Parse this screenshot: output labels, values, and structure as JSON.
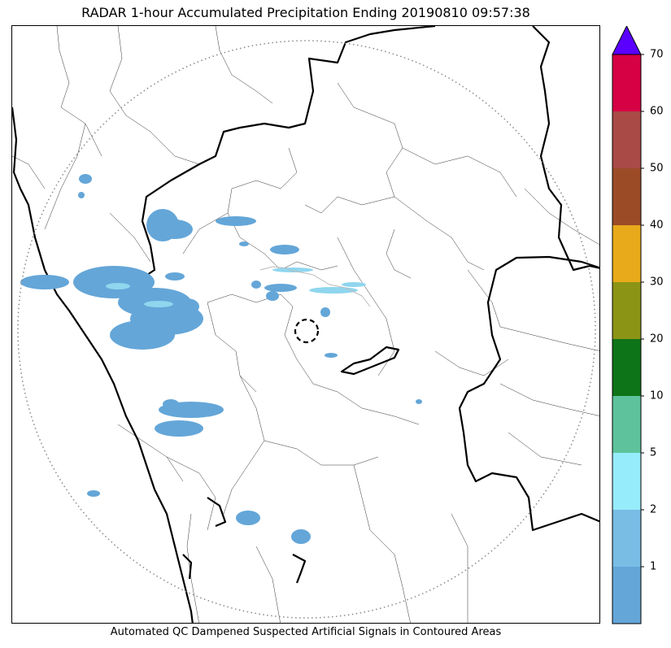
{
  "title": "RADAR 1-hour Accumulated Precipitation Ending 20190810 09:57:38",
  "caption": "Automated QC Dampened Suspected Artificial Signals in Contoured Areas",
  "colorbar": {
    "extend": "max",
    "over_color": "#5a00ff",
    "levels": [
      {
        "label": "",
        "color": "#64a6d8"
      },
      {
        "label": "1",
        "color": "#79bde4"
      },
      {
        "label": "2",
        "color": "#96ecfb"
      },
      {
        "label": "5",
        "color": "#5ec39c"
      },
      {
        "label": "10",
        "color": "#0d7418"
      },
      {
        "label": "20",
        "color": "#8c9415"
      },
      {
        "label": "30",
        "color": "#e8aa1a"
      },
      {
        "label": "40",
        "color": "#9c4b27"
      },
      {
        "label": "50",
        "color": "#a94a47"
      },
      {
        "label": "60",
        "color": "#d60044"
      },
      {
        "label": "70",
        "color": ""
      }
    ]
  },
  "map": {
    "range_ring_color": "#888888",
    "radar_site_marker": "dashed-circle",
    "precip_color": "#64a6d8",
    "light_precip_color": "#8fd6ee"
  }
}
